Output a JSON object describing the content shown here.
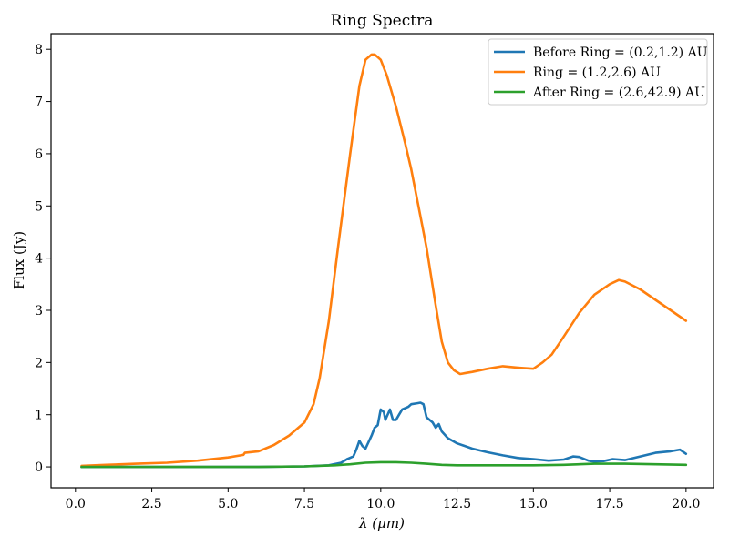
{
  "chart_data": {
    "type": "line",
    "title": "Ring Spectra",
    "xlabel": "λ (μm)",
    "ylabel": "Flux (Jy)",
    "xlim": [
      -0.8,
      20.9
    ],
    "ylim": [
      -0.4,
      8.3
    ],
    "xticks": [
      0.0,
      2.5,
      5.0,
      7.5,
      10.0,
      12.5,
      15.0,
      17.5,
      20.0
    ],
    "xtick_labels": [
      "0.0",
      "2.5",
      "5.0",
      "7.5",
      "10.0",
      "12.5",
      "15.0",
      "17.5",
      "20.0"
    ],
    "yticks": [
      0,
      1,
      2,
      3,
      4,
      5,
      6,
      7,
      8
    ],
    "ytick_labels": [
      "0",
      "1",
      "2",
      "3",
      "4",
      "5",
      "6",
      "7",
      "8"
    ],
    "grid": false,
    "legend_position": "top-right",
    "series": [
      {
        "name": "Before Ring = (0.2,1.2) AU",
        "color": "#1f77b4",
        "x": [
          0.2,
          2.0,
          4.0,
          6.0,
          7.5,
          8.3,
          8.7,
          8.9,
          9.1,
          9.2,
          9.3,
          9.4,
          9.5,
          9.7,
          9.8,
          9.9,
          10.0,
          10.1,
          10.15,
          10.3,
          10.4,
          10.5,
          10.6,
          10.7,
          10.9,
          11.0,
          11.2,
          11.3,
          11.4,
          11.5,
          11.6,
          11.7,
          11.8,
          11.9,
          12.0,
          12.2,
          12.5,
          13.0,
          13.5,
          14.0,
          14.5,
          15.0,
          15.5,
          16.0,
          16.3,
          16.5,
          16.8,
          17.0,
          17.3,
          17.6,
          18.0,
          18.5,
          19.0,
          19.5,
          19.8,
          20.0
        ],
        "values": [
          0.0,
          0.0,
          0.0,
          0.0,
          0.01,
          0.03,
          0.08,
          0.15,
          0.2,
          0.33,
          0.5,
          0.4,
          0.35,
          0.6,
          0.75,
          0.8,
          1.1,
          1.05,
          0.9,
          1.1,
          0.9,
          0.9,
          1.0,
          1.1,
          1.15,
          1.2,
          1.22,
          1.23,
          1.2,
          0.95,
          0.9,
          0.85,
          0.75,
          0.82,
          0.68,
          0.55,
          0.45,
          0.35,
          0.28,
          0.22,
          0.17,
          0.15,
          0.12,
          0.14,
          0.2,
          0.19,
          0.12,
          0.1,
          0.11,
          0.15,
          0.13,
          0.2,
          0.27,
          0.3,
          0.33,
          0.25
        ]
      },
      {
        "name": "Ring = (1.2,2.6) AU",
        "color": "#ff7f0e",
        "x": [
          0.2,
          1.0,
          2.0,
          3.0,
          4.0,
          5.0,
          5.5,
          5.55,
          6.0,
          6.5,
          7.0,
          7.5,
          7.8,
          8.0,
          8.3,
          8.6,
          9.0,
          9.3,
          9.5,
          9.7,
          9.8,
          9.9,
          10.0,
          10.2,
          10.5,
          10.8,
          11.0,
          11.3,
          11.5,
          11.8,
          12.0,
          12.2,
          12.4,
          12.6,
          12.8,
          13.0,
          13.5,
          14.0,
          14.5,
          15.0,
          15.3,
          15.6,
          16.0,
          16.5,
          17.0,
          17.5,
          17.8,
          18.0,
          18.5,
          19.0,
          19.5,
          20.0
        ],
        "values": [
          0.02,
          0.04,
          0.06,
          0.08,
          0.12,
          0.18,
          0.23,
          0.27,
          0.3,
          0.42,
          0.6,
          0.85,
          1.2,
          1.7,
          2.8,
          4.2,
          6.0,
          7.3,
          7.8,
          7.9,
          7.9,
          7.85,
          7.8,
          7.5,
          6.9,
          6.2,
          5.7,
          4.8,
          4.2,
          3.1,
          2.4,
          2.0,
          1.85,
          1.78,
          1.8,
          1.82,
          1.88,
          1.93,
          1.9,
          1.88,
          2.0,
          2.15,
          2.5,
          2.95,
          3.3,
          3.5,
          3.58,
          3.55,
          3.4,
          3.2,
          3.0,
          2.8
        ]
      },
      {
        "name": "After Ring = (2.6,42.9) AU",
        "color": "#2ca02c",
        "x": [
          0.2,
          2.0,
          4.0,
          6.0,
          7.5,
          8.5,
          9.0,
          9.5,
          10.0,
          10.5,
          11.0,
          11.5,
          12.0,
          12.5,
          13.0,
          14.0,
          15.0,
          16.0,
          17.0,
          18.0,
          19.0,
          20.0
        ],
        "values": [
          0.0,
          0.0,
          0.0,
          0.0,
          0.01,
          0.03,
          0.05,
          0.08,
          0.09,
          0.09,
          0.08,
          0.06,
          0.04,
          0.03,
          0.03,
          0.03,
          0.03,
          0.04,
          0.06,
          0.06,
          0.05,
          0.04
        ]
      }
    ]
  }
}
